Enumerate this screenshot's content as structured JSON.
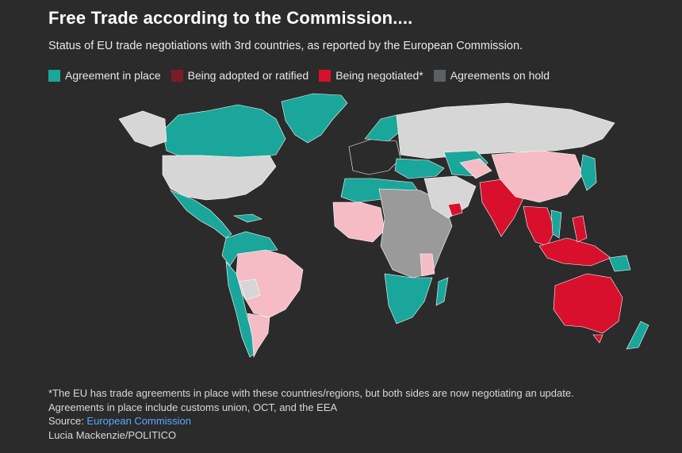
{
  "title": "Free Trade according to the Commission....",
  "subtitle": "Status of EU trade negotiations with 3rd countries, as reported by the European Commission.",
  "legend": [
    {
      "label": "Agreement in place",
      "color": "#1aa69a"
    },
    {
      "label": "Being adopted or ratified",
      "color": "#7b1c24"
    },
    {
      "label": "Being negotiated*",
      "color": "#d9102c"
    },
    {
      "label": "Agreements on hold",
      "color": "#5c6062"
    }
  ],
  "map_colors": {
    "background": "#2b2b2b",
    "no_agreement": "#d6d6d6",
    "agreement_in_place": "#1aa69a",
    "being_negotiated": "#d9102c",
    "being_negotiated_light": "#f5bcc6",
    "on_hold": "#9a9a9a",
    "eu": "#2b2b2b"
  },
  "footer": {
    "note": "*The EU has trade agreements in place with these countries/regions, but both sides are now negotiating an update.",
    "note2": "Agreements in place include customs union, OCT, and the EEA",
    "source_prefix": "Source: ",
    "source_link": "European Commission",
    "credit": "Lucia Mackenzie/POLITICO"
  }
}
